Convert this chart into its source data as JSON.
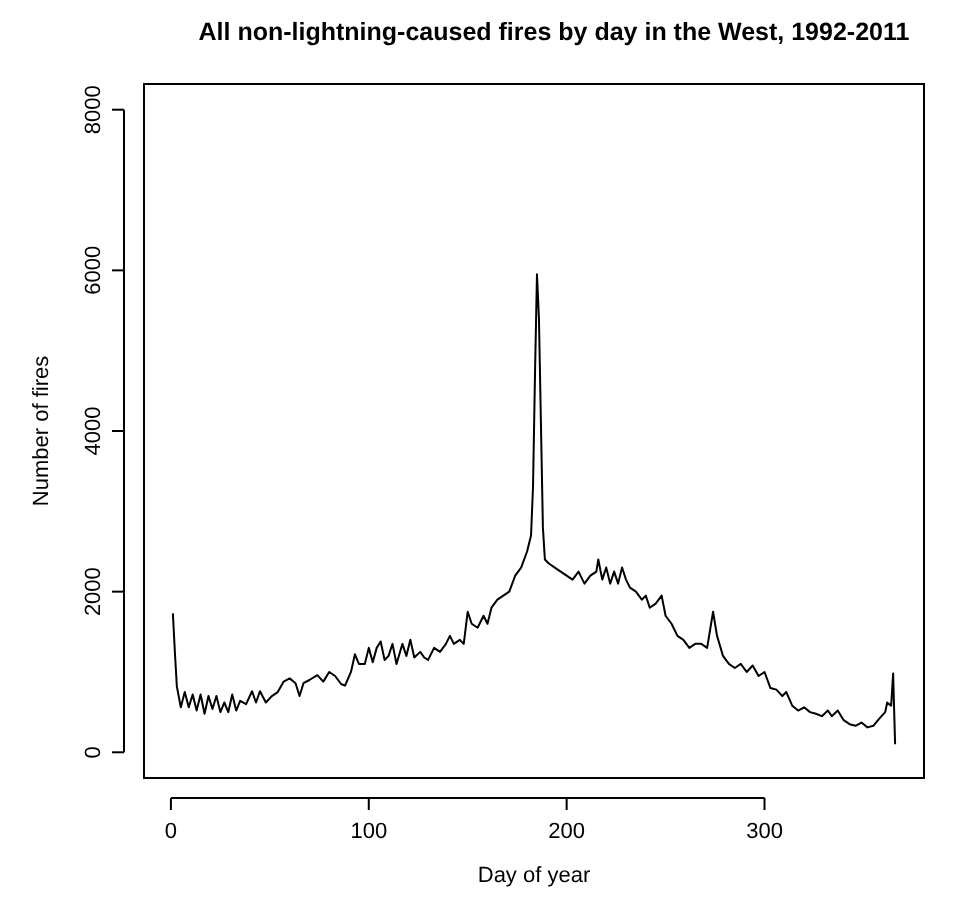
{
  "chart_data": {
    "type": "line",
    "title": "All non-lightning-caused fires by day in the West, 1992-2011",
    "xlabel": "Day of year",
    "ylabel": "Number of fires",
    "xlim": [
      -13.6,
      380.6
    ],
    "ylim": [
      -320,
      8320
    ],
    "xticks": [
      0,
      100,
      200,
      300
    ],
    "yticks": [
      0,
      2000,
      4000,
      6000,
      8000
    ],
    "grid": false,
    "marker": "none",
    "line_style": "solid",
    "x": [
      1,
      2,
      3,
      5,
      7,
      9,
      11,
      13,
      15,
      17,
      19,
      21,
      23,
      25,
      27,
      29,
      31,
      33,
      35,
      38,
      41,
      43,
      45,
      48,
      51,
      54,
      57,
      60,
      63,
      65,
      67,
      70,
      74,
      77,
      80,
      83,
      86,
      88,
      91,
      93,
      95,
      98,
      100,
      102,
      104,
      106,
      108,
      110,
      112,
      114,
      117,
      119,
      121,
      123,
      126,
      128,
      130,
      133,
      136,
      139,
      141,
      143,
      146,
      148,
      150,
      152,
      155,
      158,
      160,
      162,
      165,
      168,
      171,
      174,
      177,
      180,
      182,
      183,
      184,
      185,
      186,
      187,
      188,
      189,
      191,
      194,
      197,
      200,
      203,
      206,
      209,
      212,
      215,
      216,
      218,
      220,
      222,
      224,
      226,
      228,
      230,
      232,
      235,
      238,
      240,
      242,
      245,
      248,
      250,
      253,
      256,
      259,
      262,
      265,
      268,
      271,
      274,
      276,
      279,
      282,
      285,
      288,
      291,
      294,
      297,
      300,
      303,
      306,
      309,
      311,
      314,
      317,
      320,
      323,
      326,
      329,
      332,
      334,
      337,
      340,
      343,
      346,
      349,
      352,
      355,
      358,
      361,
      362,
      364,
      365,
      366
    ],
    "series": [
      {
        "color": "#000000",
        "values": [
          1730,
          1250,
          820,
          560,
          750,
          560,
          720,
          520,
          720,
          480,
          700,
          540,
          700,
          500,
          620,
          500,
          720,
          520,
          640,
          600,
          760,
          620,
          760,
          620,
          700,
          750,
          880,
          920,
          860,
          700,
          860,
          900,
          960,
          880,
          1000,
          950,
          850,
          830,
          1000,
          1220,
          1100,
          1100,
          1300,
          1120,
          1300,
          1380,
          1150,
          1200,
          1350,
          1100,
          1350,
          1200,
          1400,
          1180,
          1250,
          1180,
          1150,
          1300,
          1250,
          1350,
          1450,
          1350,
          1400,
          1350,
          1750,
          1600,
          1550,
          1700,
          1600,
          1800,
          1900,
          1950,
          2000,
          2200,
          2300,
          2500,
          2700,
          3300,
          4700,
          5950,
          5400,
          4100,
          2800,
          2400,
          2350,
          2300,
          2250,
          2200,
          2150,
          2250,
          2100,
          2200,
          2250,
          2400,
          2150,
          2300,
          2100,
          2250,
          2100,
          2300,
          2150,
          2050,
          2000,
          1900,
          1950,
          1800,
          1850,
          1950,
          1700,
          1600,
          1450,
          1400,
          1300,
          1350,
          1350,
          1300,
          1750,
          1450,
          1200,
          1100,
          1050,
          1100,
          1000,
          1080,
          950,
          1000,
          800,
          780,
          700,
          750,
          580,
          520,
          560,
          500,
          480,
          450,
          520,
          450,
          520,
          400,
          350,
          330,
          370,
          310,
          330,
          420,
          500,
          620,
          580,
          980,
          100
        ]
      }
    ]
  }
}
